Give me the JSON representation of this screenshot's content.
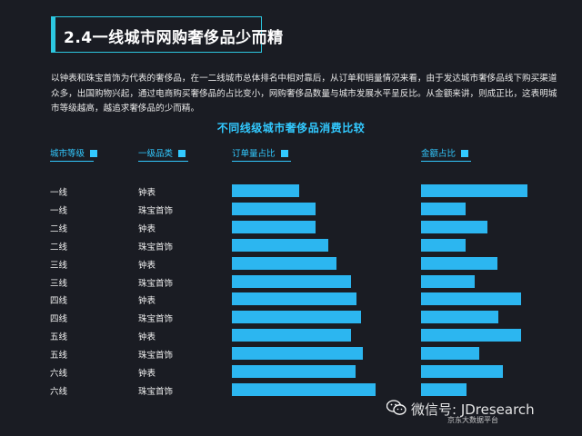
{
  "header": {
    "title": "2.4一线城市网购奢侈品少而精",
    "description": "以钟表和珠宝首饰为代表的奢侈品，在一二线城市总体排名中相对靠后，从订单和销量情况来看，由于发达城市奢侈品线下购买渠道众多，出国购物兴起，通过电商购买奢侈品的占比变小，网购奢侈品数量与城市发展水平呈反比。从金额来讲，则成正比，这表明城市等级越高，越追求奢侈品的少而精。"
  },
  "chart_data": {
    "type": "bar",
    "title": "不同线级城市奢侈品消费比较",
    "columns": [
      "城市等级",
      "一级品类",
      "订单量占比",
      "金额占比"
    ],
    "categories": [
      {
        "city": "一线",
        "category": "钟表"
      },
      {
        "city": "一线",
        "category": "珠宝首饰"
      },
      {
        "city": "二线",
        "category": "钟表"
      },
      {
        "city": "二线",
        "category": "珠宝首饰"
      },
      {
        "city": "三线",
        "category": "钟表"
      },
      {
        "city": "三线",
        "category": "珠宝首饰"
      },
      {
        "city": "四线",
        "category": "钟表"
      },
      {
        "city": "四线",
        "category": "珠宝首饰"
      },
      {
        "city": "五线",
        "category": "钟表"
      },
      {
        "city": "五线",
        "category": "珠宝首饰"
      },
      {
        "city": "六线",
        "category": "钟表"
      },
      {
        "city": "六线",
        "category": "珠宝首饰"
      }
    ],
    "series": [
      {
        "name": "订单量占比",
        "values": [
          0.47,
          0.58,
          0.58,
          0.67,
          0.73,
          0.83,
          0.87,
          0.9,
          0.83,
          0.91,
          0.86,
          1.0
        ]
      },
      {
        "name": "金额占比",
        "values": [
          1.0,
          0.42,
          0.62,
          0.42,
          0.72,
          0.5,
          0.94,
          0.73,
          0.94,
          0.55,
          0.77,
          0.43
        ]
      }
    ],
    "colors": {
      "bar": "#2cb6f0",
      "accent": "#32c9ff"
    }
  },
  "watermark": {
    "text": "微信号: JDresearch",
    "sub": "京东大数据平台"
  }
}
